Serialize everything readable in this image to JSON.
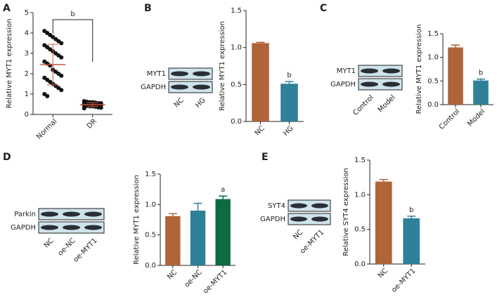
{
  "chart_data": [
    {
      "type": "dotplot",
      "panel": "A",
      "y_label": "Relative MYT1 expression",
      "ylim": [
        0,
        5
      ],
      "yticks": [
        0,
        1,
        2,
        3,
        4,
        5
      ],
      "annotation": "b",
      "groups": [
        {
          "name": "Normal",
          "color": "#111111",
          "mean": 2.45,
          "sd": 1.0,
          "line_color": "#c8553d",
          "values": [
            4.1,
            4.0,
            3.9,
            3.8,
            3.7,
            3.6,
            3.5,
            3.4,
            3.3,
            3.2,
            3.1,
            3.0,
            2.9,
            2.8,
            2.6,
            2.5,
            2.4,
            2.2,
            2.1,
            2.0,
            1.9,
            1.8,
            1.7,
            1.6,
            1.5,
            1.4,
            1.3,
            1.2,
            1.0,
            0.9
          ]
        },
        {
          "name": "DR",
          "color": "#111111",
          "mean": 0.48,
          "sd": 0.1,
          "line_color": "#c8553d",
          "values": [
            0.65,
            0.62,
            0.6,
            0.6,
            0.58,
            0.55,
            0.55,
            0.52,
            0.5,
            0.5,
            0.5,
            0.48,
            0.46,
            0.45,
            0.44,
            0.42,
            0.4,
            0.4,
            0.38,
            0.35,
            0.33,
            0.3
          ]
        }
      ]
    },
    {
      "type": "bar",
      "panel": "B",
      "y_label": "Relative MYT1 expression",
      "ylim": [
        0,
        1.5
      ],
      "yticks": [
        {
          "value": 0,
          "label": "0.0"
        },
        0.5,
        {
          "value": 1,
          "label": "1.0"
        },
        1.5
      ],
      "categories": [
        "NC",
        "HG"
      ],
      "values": [
        1.06,
        0.51
      ],
      "errors": [
        0.01,
        0.03
      ],
      "colors": [
        "#b0643a",
        "#2f8098"
      ],
      "annotations": [
        null,
        "b"
      ],
      "blot": {
        "rows": [
          "MYT1",
          "GAPDH"
        ],
        "lanes": [
          "NC",
          "HG"
        ]
      }
    },
    {
      "type": "bar",
      "panel": "C",
      "y_label": "Relative MYT1 expression",
      "ylim": [
        0,
        1.5
      ],
      "yticks": [
        {
          "value": 0,
          "label": "0.0"
        },
        0.5,
        {
          "value": 1,
          "label": "1.0"
        },
        1.5
      ],
      "categories": [
        "Control",
        "Model"
      ],
      "values": [
        1.21,
        0.51
      ],
      "errors": [
        0.05,
        0.03
      ],
      "colors": [
        "#b0643a",
        "#2f8098"
      ],
      "annotations": [
        null,
        "b"
      ],
      "blot": {
        "rows": [
          "MYT1",
          "GAPDH"
        ],
        "lanes": [
          "Control",
          "Model"
        ]
      }
    },
    {
      "type": "bar",
      "panel": "D",
      "y_label": "Relative MYT1 expression",
      "ylim": [
        0,
        1.5
      ],
      "yticks": [
        {
          "value": 0,
          "label": "0.0"
        },
        0.5,
        {
          "value": 1,
          "label": "1.0"
        },
        1.5
      ],
      "categories": [
        "NC",
        "oe-NC",
        "oe-MYT1"
      ],
      "values": [
        0.81,
        0.9,
        1.09
      ],
      "errors": [
        0.04,
        0.12,
        0.05
      ],
      "colors": [
        "#b0643a",
        "#2f8098",
        "#0d6a45"
      ],
      "annotations": [
        null,
        null,
        "a"
      ],
      "blot": {
        "rows": [
          "Parkin",
          "GAPDH"
        ],
        "lanes": [
          "NC",
          "oe-NC",
          "oe-MYT1"
        ]
      }
    },
    {
      "type": "bar",
      "panel": "E",
      "y_label": "Relative SYT4 expression",
      "ylim": [
        0,
        1.5
      ],
      "yticks": [
        {
          "value": 0,
          "label": "0.0"
        },
        0.5,
        {
          "value": 1,
          "label": "1.0"
        },
        1.5
      ],
      "categories": [
        "NC",
        "oe-MYT1"
      ],
      "values": [
        1.19,
        0.66
      ],
      "errors": [
        0.03,
        0.03
      ],
      "colors": [
        "#b0643a",
        "#2f8098"
      ],
      "annotations": [
        null,
        "b"
      ],
      "blot": {
        "rows": [
          "SYT4",
          "GAPDH"
        ],
        "lanes": [
          "NC",
          "oe-MYT1"
        ]
      }
    }
  ]
}
